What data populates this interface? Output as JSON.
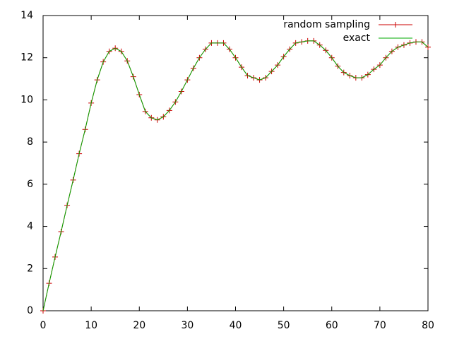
{
  "chart_data": {
    "type": "line",
    "x": [
      0,
      1.25,
      2.5,
      3.75,
      5,
      6.25,
      7.5,
      8.75,
      10,
      11.25,
      12.5,
      13.75,
      15,
      16.25,
      17.5,
      18.75,
      20,
      21.25,
      22.5,
      23.75,
      25,
      26.25,
      27.5,
      28.75,
      30,
      31.25,
      32.5,
      33.75,
      35,
      36.25,
      37.5,
      38.75,
      40,
      41.25,
      42.5,
      43.75,
      45,
      46.25,
      47.5,
      48.75,
      50,
      51.25,
      52.5,
      53.75,
      55,
      56.25,
      57.5,
      58.75,
      60,
      61.25,
      62.5,
      63.75,
      65,
      66.25,
      67.5,
      68.75,
      70,
      71.25,
      72.5,
      73.75,
      75,
      76.25,
      77.5,
      78.75,
      80
    ],
    "series": [
      {
        "name": "random sampling",
        "color": "#cc0000",
        "marker": "+",
        "values": [
          0,
          1.3,
          2.55,
          3.75,
          5.0,
          6.2,
          7.45,
          8.6,
          9.85,
          10.95,
          11.8,
          12.3,
          12.45,
          12.3,
          11.85,
          11.1,
          10.25,
          9.45,
          9.15,
          9.05,
          9.2,
          9.5,
          9.9,
          10.4,
          10.95,
          11.5,
          12.0,
          12.4,
          12.7,
          12.7,
          12.7,
          12.4,
          12.0,
          11.55,
          11.15,
          11.05,
          10.95,
          11.05,
          11.35,
          11.65,
          12.05,
          12.4,
          12.7,
          12.75,
          12.8,
          12.8,
          12.6,
          12.35,
          12.0,
          11.6,
          11.3,
          11.15,
          11.05,
          11.05,
          11.2,
          11.45,
          11.65,
          12.0,
          12.3,
          12.5,
          12.6,
          12.7,
          12.75,
          12.75,
          12.5
        ]
      },
      {
        "name": "exact",
        "color": "#00aa00",
        "values": [
          0,
          1.3,
          2.55,
          3.75,
          5.0,
          6.2,
          7.45,
          8.6,
          9.85,
          10.95,
          11.8,
          12.3,
          12.45,
          12.3,
          11.85,
          11.1,
          10.25,
          9.45,
          9.15,
          9.05,
          9.2,
          9.5,
          9.9,
          10.4,
          10.95,
          11.5,
          12.0,
          12.4,
          12.7,
          12.7,
          12.7,
          12.4,
          12.0,
          11.55,
          11.15,
          11.05,
          10.95,
          11.05,
          11.35,
          11.65,
          12.05,
          12.4,
          12.7,
          12.75,
          12.8,
          12.8,
          12.6,
          12.35,
          12.0,
          11.6,
          11.3,
          11.15,
          11.05,
          11.05,
          11.2,
          11.45,
          11.65,
          12.0,
          12.3,
          12.5,
          12.6,
          12.7,
          12.75,
          12.75,
          12.5
        ]
      }
    ],
    "xlim": [
      0,
      80
    ],
    "xticks": [
      0,
      10,
      20,
      30,
      40,
      50,
      60,
      70,
      80
    ],
    "ylim": [
      0,
      14
    ],
    "yticks": [
      0,
      2,
      4,
      6,
      8,
      10,
      12,
      14
    ],
    "grid": false,
    "legend": "top-right"
  }
}
